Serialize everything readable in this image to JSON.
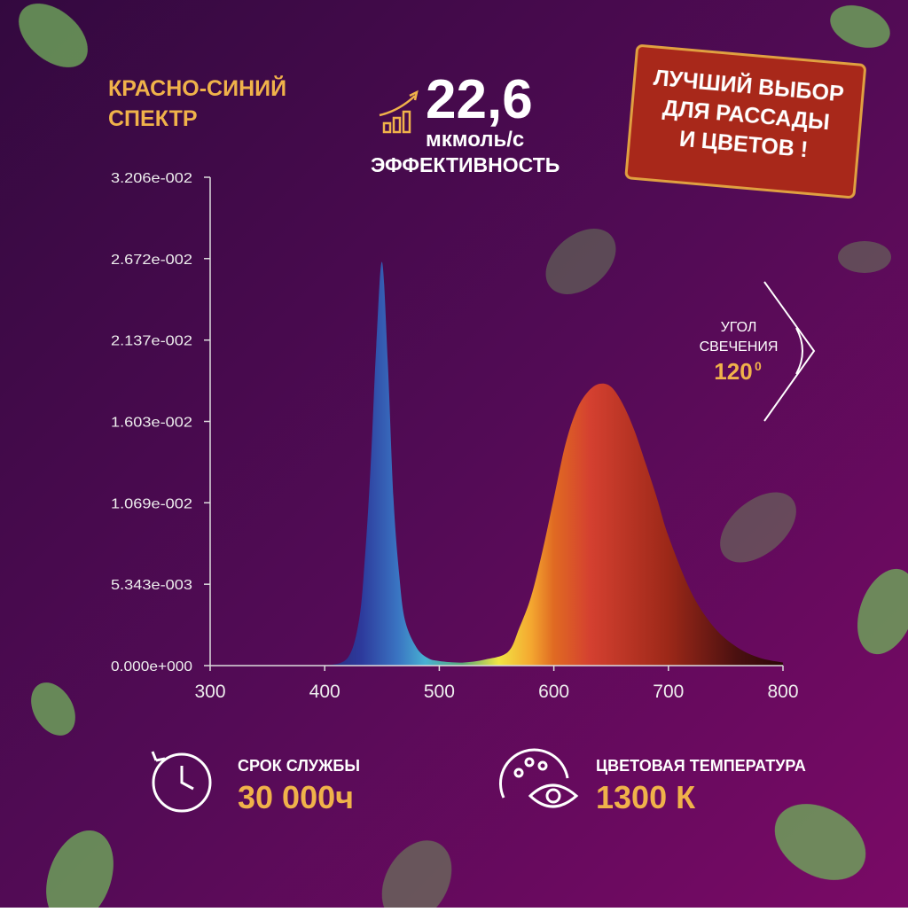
{
  "header": {
    "title_lines": [
      "КРАСНО-СИНИЙ",
      "СПЕКТР"
    ]
  },
  "efficiency": {
    "value": "22,6",
    "unit": "мкмоль/с",
    "label": "ЭФФЕКТИВНОСТЬ"
  },
  "badge": {
    "lines": [
      "ЛУЧШИЙ ВЫБОР",
      "ДЛЯ РАССАДЫ",
      "И ЦВЕТОВ !"
    ]
  },
  "beam_angle": {
    "label_lines": [
      "УГОЛ",
      "СВЕЧЕНИЯ"
    ],
    "value": "120",
    "unit": "0"
  },
  "lifetime": {
    "label": "СРОК СЛУЖБЫ",
    "value": "30 000ч"
  },
  "color_temperature": {
    "label": "ЦВЕТОВАЯ ТЕМПЕРАТУРА",
    "value": "1300 К"
  },
  "chart_data": {
    "type": "area",
    "x": [
      400,
      420,
      430,
      435,
      440,
      445,
      450,
      455,
      460,
      465,
      470,
      480,
      490,
      500,
      520,
      540,
      560,
      570,
      580,
      590,
      600,
      610,
      620,
      630,
      640,
      650,
      660,
      670,
      680,
      690,
      700,
      720,
      740,
      760,
      780,
      800
    ],
    "values": [
      0,
      0.0005,
      0.003,
      0.007,
      0.013,
      0.021,
      0.0265,
      0.02,
      0.011,
      0.006,
      0.003,
      0.0012,
      0.0005,
      0.0003,
      0.0002,
      0.0004,
      0.0009,
      0.0025,
      0.0045,
      0.0075,
      0.011,
      0.0145,
      0.0168,
      0.018,
      0.0185,
      0.0183,
      0.0172,
      0.0155,
      0.0133,
      0.011,
      0.0085,
      0.0048,
      0.0025,
      0.0012,
      0.0005,
      0.0002
    ],
    "xlim": [
      300,
      800
    ],
    "xticks": [
      300,
      400,
      500,
      600,
      700,
      800
    ],
    "ylim": [
      0,
      0.03206
    ],
    "yticks": [
      {
        "value": 0,
        "label": "0.000e+000"
      },
      {
        "value": 0.005343,
        "label": "5.343e-003"
      },
      {
        "value": 0.01069,
        "label": "1.069e-002"
      },
      {
        "value": 0.01603,
        "label": "1.603e-002"
      },
      {
        "value": 0.02137,
        "label": "2.137e-002"
      },
      {
        "value": 0.02672,
        "label": "2.672e-002"
      },
      {
        "value": 0.03206,
        "label": "3.206e-002"
      }
    ]
  }
}
